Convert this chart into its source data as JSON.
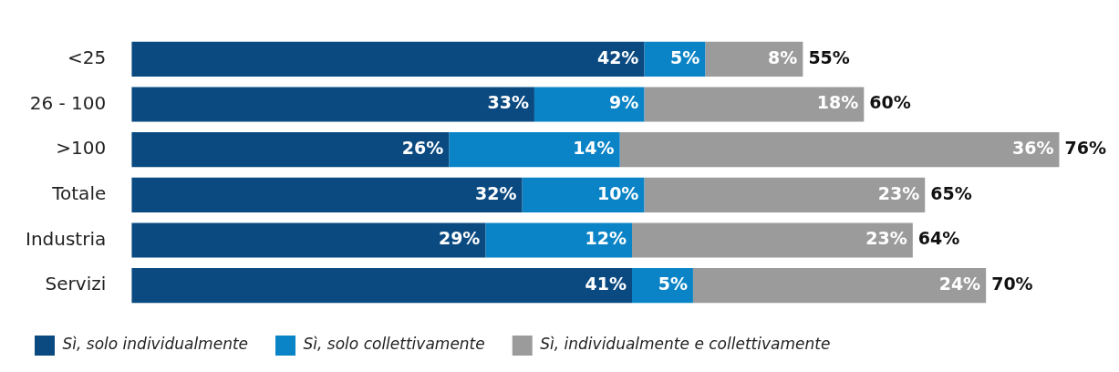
{
  "chart_data": {
    "type": "bar",
    "orientation": "horizontal",
    "stacked": true,
    "legend": "bottom",
    "grid": false,
    "categories": [
      "<25",
      "26 - 100",
      ">100",
      "Totale",
      "Industria",
      "Servizi"
    ],
    "series": [
      {
        "name": "Sì, solo individualmente",
        "color": "#0b4a80",
        "values": [
          42,
          33,
          26,
          32,
          29,
          41
        ],
        "value_labels": [
          "42%",
          "33%",
          "26%",
          "32%",
          "29%",
          "41%"
        ]
      },
      {
        "name": "Sì, solo collettivamente",
        "color": "#0a84c6",
        "values": [
          5,
          9,
          14,
          10,
          12,
          5
        ],
        "value_labels": [
          "5%",
          "9%",
          "14%",
          "10%",
          "12%",
          "5%"
        ]
      },
      {
        "name": "Sì, individualmente e collettivamente",
        "color": "#9b9b9b",
        "values": [
          8,
          18,
          36,
          23,
          23,
          24
        ],
        "value_labels": [
          "8%",
          "18%",
          "36%",
          "23%",
          "23%",
          "24%"
        ]
      }
    ],
    "totals": [
      "55%",
      "60%",
      "76%",
      "65%",
      "64%",
      "70%"
    ]
  }
}
